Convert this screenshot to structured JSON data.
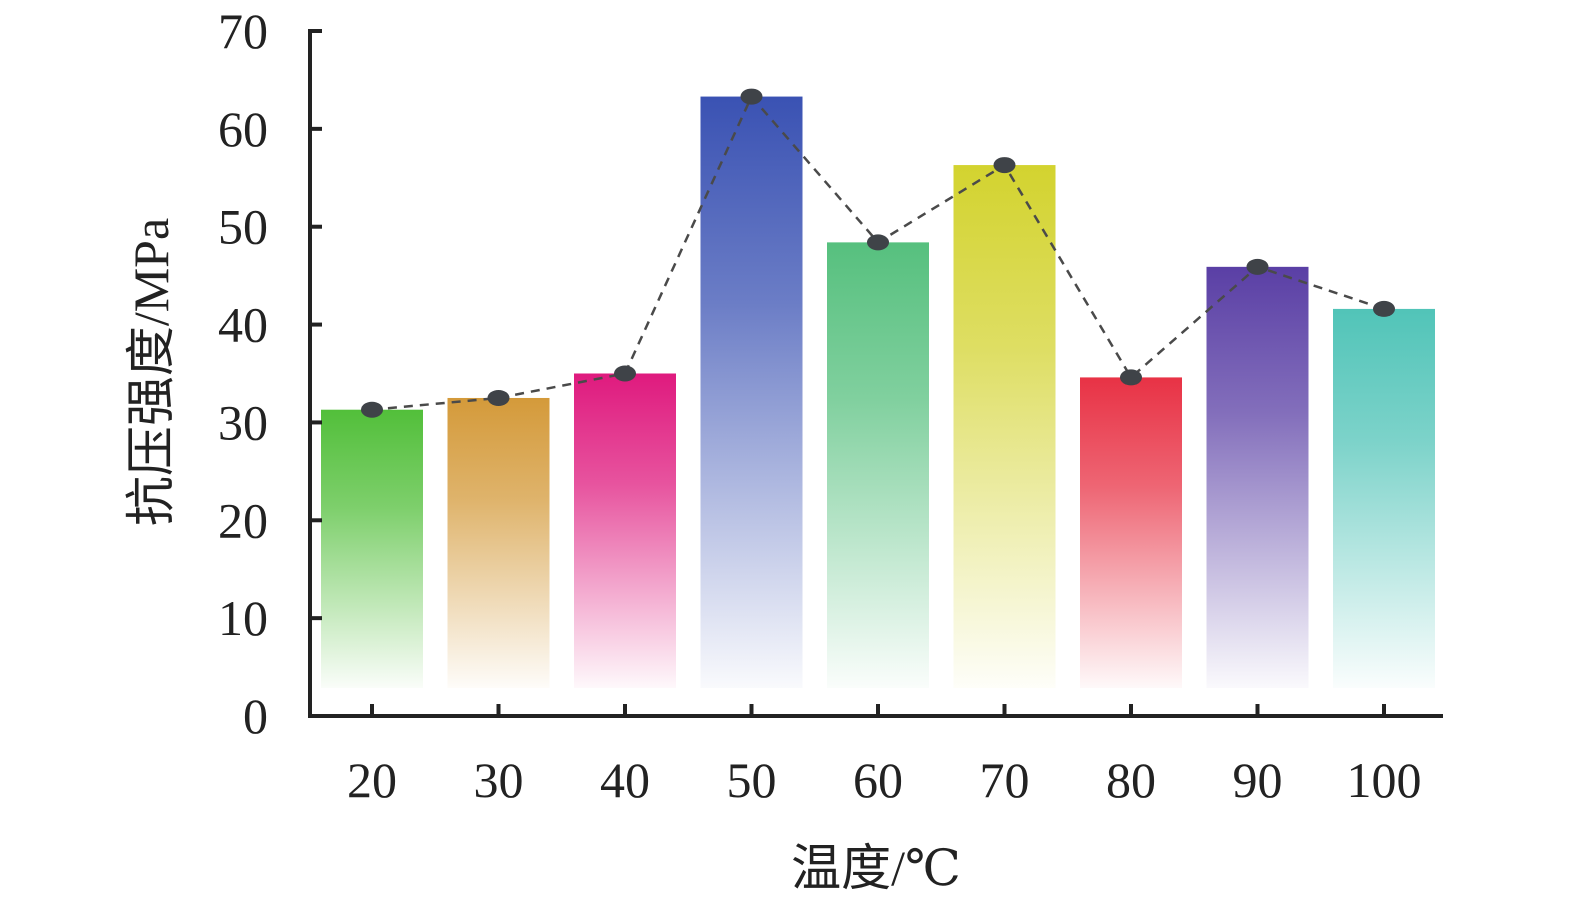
{
  "chart_data": {
    "type": "bar",
    "xlabel": "温度/℃",
    "ylabel": "抗压强度/MPa",
    "categories": [
      "20",
      "30",
      "40",
      "50",
      "60",
      "70",
      "80",
      "90",
      "100"
    ],
    "values": [
      31.3,
      32.5,
      35.0,
      63.3,
      48.4,
      56.3,
      34.6,
      45.9,
      41.6
    ],
    "ylim": [
      0,
      70
    ],
    "yticks": [
      "0",
      "10",
      "20",
      "30",
      "40",
      "50",
      "60",
      "70"
    ],
    "grid": false,
    "line_overlay": {
      "style": "dashed",
      "marker": "circle",
      "color": "#4a4a4a"
    },
    "bar_colors": [
      "#52bf3a",
      "#d49a3a",
      "#df1a7e",
      "#3a52b3",
      "#56c07e",
      "#d3d32f",
      "#e83245",
      "#5a3fa5",
      "#51c4b8"
    ]
  }
}
